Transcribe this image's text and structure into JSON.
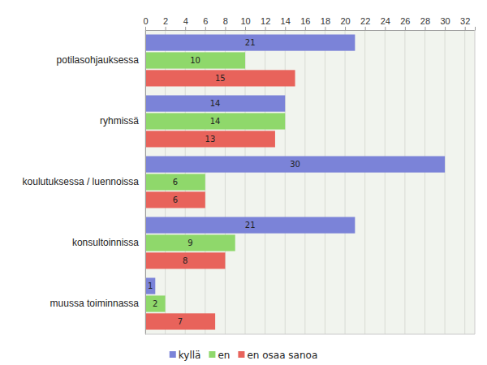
{
  "chart_data": {
    "type": "bar",
    "orientation": "horizontal",
    "categories": [
      "potilasohjauksessa",
      "ryhmissä",
      "koulutuksessa / luennoissa",
      "konsultoinnissa",
      "muussa toiminnassa"
    ],
    "series": [
      {
        "name": "kyllä",
        "color": "#7b83d8",
        "values": [
          21,
          14,
          30,
          21,
          1
        ]
      },
      {
        "name": "en",
        "color": "#8fd86b",
        "values": [
          10,
          14,
          6,
          9,
          2
        ]
      },
      {
        "name": "en osaa sanoa",
        "color": "#e8635b",
        "values": [
          15,
          13,
          6,
          8,
          7
        ]
      }
    ],
    "xlim": [
      0,
      33
    ],
    "xticks": [
      0,
      2,
      4,
      6,
      8,
      10,
      12,
      14,
      16,
      18,
      20,
      22,
      24,
      26,
      28,
      30,
      32
    ],
    "grid": true,
    "data_labels": true,
    "legend": "bottom"
  }
}
